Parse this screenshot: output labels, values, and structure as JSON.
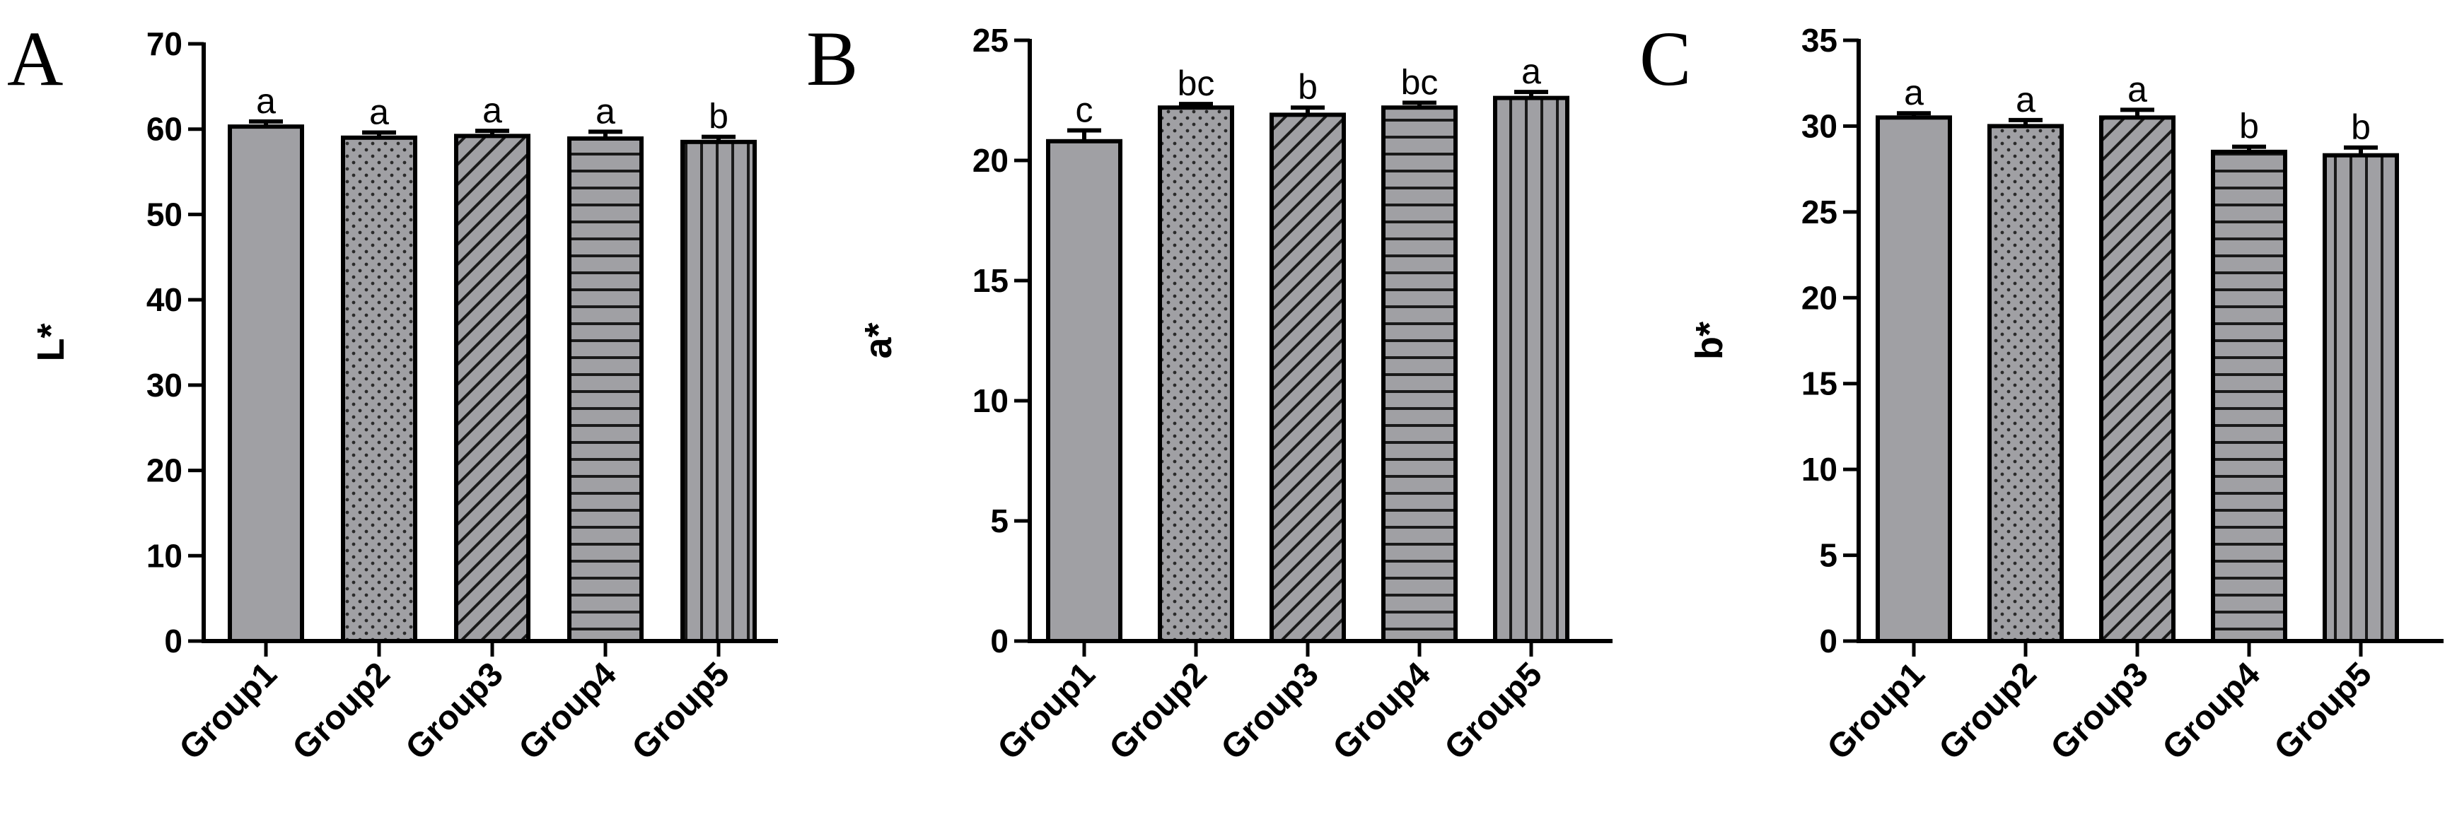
{
  "chart_data": [
    {
      "type": "bar",
      "panel_label": "A",
      "ylabel": "L*",
      "categories": [
        "Group1",
        "Group2",
        "Group3",
        "Group4",
        "Group5"
      ],
      "values": [
        60.3,
        59.0,
        59.2,
        58.9,
        58.5
      ],
      "errors": [
        0.6,
        0.6,
        0.6,
        0.8,
        0.6
      ],
      "significance": [
        "a",
        "a",
        "a",
        "a",
        "b"
      ],
      "ylim": [
        0,
        70
      ],
      "yticks": [
        0,
        10,
        20,
        30,
        40,
        50,
        60,
        70
      ],
      "patterns": [
        "solid",
        "dots",
        "diagonal",
        "horizontal",
        "vertical"
      ],
      "bar_color": "#a0a0a4"
    },
    {
      "type": "bar",
      "panel_label": "B",
      "ylabel": "a*",
      "categories": [
        "Group1",
        "Group2",
        "Group3",
        "Group4",
        "Group5"
      ],
      "values": [
        20.8,
        22.2,
        21.9,
        22.2,
        22.6
      ],
      "errors": [
        0.45,
        0.15,
        0.3,
        0.2,
        0.25
      ],
      "significance": [
        "c",
        "bc",
        "b",
        "bc",
        "a"
      ],
      "ylim": [
        0,
        25
      ],
      "yticks": [
        0,
        5,
        10,
        15,
        20,
        25
      ],
      "patterns": [
        "solid",
        "dots",
        "diagonal",
        "horizontal",
        "vertical"
      ],
      "bar_color": "#a0a0a4"
    },
    {
      "type": "bar",
      "panel_label": "C",
      "ylabel": "b*",
      "categories": [
        "Group1",
        "Group2",
        "Group3",
        "Group4",
        "Group5"
      ],
      "values": [
        30.5,
        30.0,
        30.5,
        28.5,
        28.3
      ],
      "errors": [
        0.25,
        0.35,
        0.45,
        0.3,
        0.45
      ],
      "significance": [
        "a",
        "a",
        "a",
        "b",
        "b"
      ],
      "ylim": [
        0,
        35
      ],
      "yticks": [
        0,
        5,
        10,
        15,
        20,
        25,
        30,
        35
      ],
      "patterns": [
        "solid",
        "dots",
        "diagonal",
        "horizontal",
        "vertical"
      ],
      "bar_color": "#a0a0a4"
    }
  ]
}
